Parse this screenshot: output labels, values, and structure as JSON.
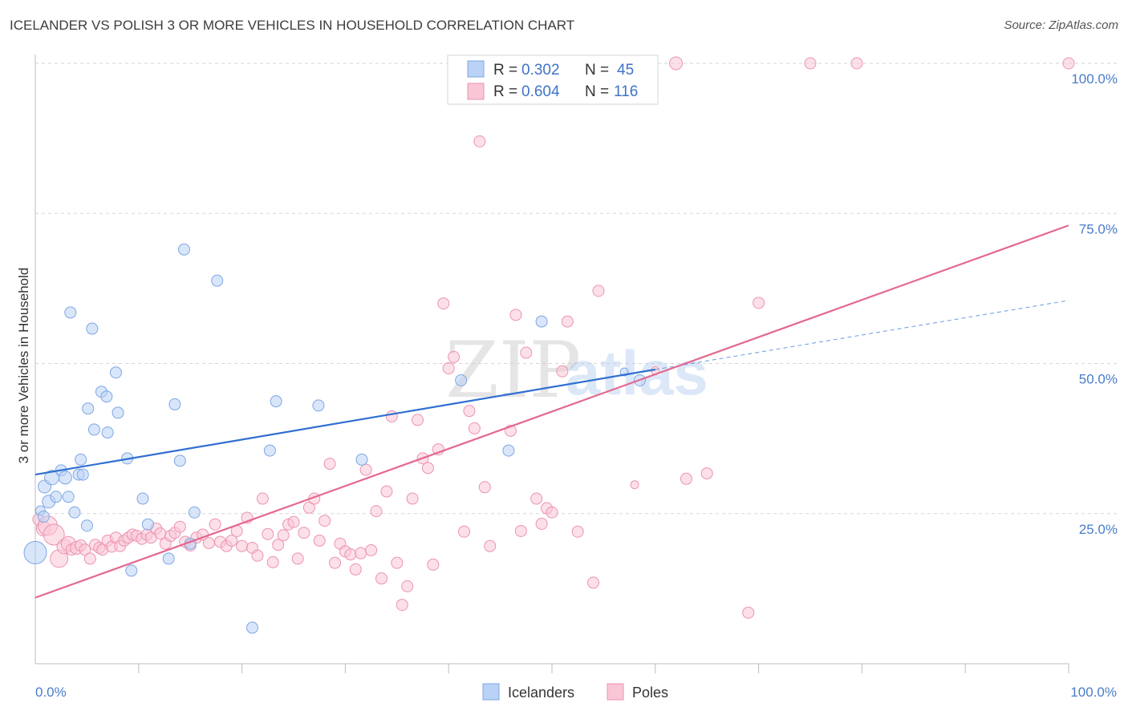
{
  "title": "ICELANDER VS POLISH 3 OR MORE VEHICLES IN HOUSEHOLD CORRELATION CHART",
  "source": "Source: ZipAtlas.com",
  "watermark": {
    "zip": "ZIP",
    "atlas": "atlas"
  },
  "colors": {
    "blue_fill": "#b9d2f5",
    "blue_stroke": "#7ea7e4",
    "blue_line": "#2f6fd1",
    "pink_fill": "#f9c6d6",
    "pink_stroke": "#ec93b1",
    "pink_line": "#e4688f",
    "grid": "#d5d5d5",
    "axis_text": "#4a7cc9"
  },
  "legend": {
    "rows": [
      {
        "r_label": "R =",
        "r_value": "0.302",
        "n_label": "N =",
        "n_value": "45"
      },
      {
        "r_label": "R =",
        "r_value": "0.604",
        "n_label": "N =",
        "n_value": "116"
      }
    ]
  },
  "bottom_legend": [
    "Icelanders",
    "Poles"
  ],
  "chart_data": {
    "type": "scatter",
    "title": "ICELANDER VS POLISH 3 OR MORE VEHICLES IN HOUSEHOLD CORRELATION CHART",
    "xlabel": "",
    "ylabel": "3 or more Vehicles in Household",
    "xlim": [
      0,
      100
    ],
    "ylim": [
      0,
      100
    ],
    "x_tick_labels": [
      "0.0%",
      "100.0%"
    ],
    "y_ticks": [
      25,
      50,
      75,
      100
    ],
    "y_tick_labels": [
      "25.0%",
      "50.0%",
      "75.0%",
      "100.0%"
    ],
    "grid": true,
    "legend_position": "top-center",
    "series": [
      {
        "name": "Icelanders",
        "R": 0.302,
        "N": 45,
        "trend": {
          "x0": 0,
          "y0": 31.5,
          "x1": 60,
          "y1": 49,
          "dash_to_x": 100,
          "dash_to_y": 60.5
        },
        "points": [
          [
            0,
            18.5,
            14
          ],
          [
            0.5,
            25.5,
            6
          ],
          [
            0.8,
            24.5,
            7
          ],
          [
            0.9,
            29.5,
            8
          ],
          [
            1.3,
            27,
            8
          ],
          [
            1.6,
            31,
            9
          ],
          [
            2.0,
            27.8,
            7
          ],
          [
            2.5,
            32.2,
            7
          ],
          [
            2.9,
            31,
            8
          ],
          [
            3.2,
            27.8,
            7
          ],
          [
            3.4,
            58.5,
            7
          ],
          [
            3.8,
            25.2,
            7
          ],
          [
            4.2,
            31.5,
            7
          ],
          [
            4.4,
            34,
            7
          ],
          [
            4.6,
            31.5,
            7
          ],
          [
            5.0,
            23,
            7
          ],
          [
            5.1,
            42.5,
            7
          ],
          [
            5.5,
            55.8,
            7
          ],
          [
            5.7,
            39,
            7
          ],
          [
            6.4,
            45.3,
            7
          ],
          [
            6.9,
            44.5,
            7
          ],
          [
            7.0,
            38.5,
            7
          ],
          [
            7.8,
            48.5,
            7
          ],
          [
            8.0,
            41.8,
            7
          ],
          [
            8.9,
            34.2,
            7
          ],
          [
            9.3,
            15.5,
            7
          ],
          [
            10.4,
            27.5,
            7
          ],
          [
            10.9,
            23.2,
            7
          ],
          [
            12.9,
            17.5,
            7
          ],
          [
            13.5,
            43.2,
            7
          ],
          [
            14.0,
            33.8,
            7
          ],
          [
            14.4,
            69,
            7
          ],
          [
            15.0,
            20,
            7
          ],
          [
            15.4,
            25.2,
            7
          ],
          [
            17.6,
            63.8,
            7
          ],
          [
            21.0,
            6,
            7
          ],
          [
            22.7,
            35.5,
            7
          ],
          [
            23.3,
            43.7,
            7
          ],
          [
            27.4,
            43,
            7
          ],
          [
            31.6,
            34,
            7
          ],
          [
            41.2,
            47.2,
            7
          ],
          [
            45.8,
            35.5,
            7
          ],
          [
            49.0,
            57,
            7
          ],
          [
            58.5,
            47.2,
            7
          ],
          [
            57.0,
            48.6,
            5
          ]
        ]
      },
      {
        "name": "Poles",
        "R": 0.604,
        "N": 116,
        "trend": {
          "x0": 0,
          "y0": 11,
          "x1": 100,
          "y1": 73
        },
        "points": [
          [
            0.3,
            24,
            7
          ],
          [
            0.8,
            22.5,
            9
          ],
          [
            1.2,
            23,
            12
          ],
          [
            1.8,
            21.5,
            13
          ],
          [
            2.3,
            17.5,
            11
          ],
          [
            2.8,
            19.5,
            9
          ],
          [
            3.2,
            20,
            9
          ],
          [
            3.5,
            19,
            7
          ],
          [
            4.0,
            19.3,
            8
          ],
          [
            4.4,
            19.7,
            7
          ],
          [
            4.8,
            19,
            7
          ],
          [
            5.3,
            17.5,
            7
          ],
          [
            5.8,
            19.8,
            7
          ],
          [
            6.2,
            19.3,
            7
          ],
          [
            6.5,
            19,
            7
          ],
          [
            7.0,
            20.5,
            7
          ],
          [
            7.4,
            19.5,
            7
          ],
          [
            7.8,
            21,
            7
          ],
          [
            8.2,
            19.6,
            7
          ],
          [
            8.6,
            20.5,
            7
          ],
          [
            9.0,
            21,
            7
          ],
          [
            9.4,
            21.5,
            7
          ],
          [
            9.8,
            21.3,
            7
          ],
          [
            10.3,
            20.8,
            7
          ],
          [
            10.8,
            21.5,
            7
          ],
          [
            11.2,
            21,
            7
          ],
          [
            11.7,
            22.5,
            7
          ],
          [
            12.1,
            21.7,
            7
          ],
          [
            12.6,
            20,
            7
          ],
          [
            13.1,
            21.3,
            7
          ],
          [
            13.5,
            21.8,
            7
          ],
          [
            14.0,
            22.8,
            7
          ],
          [
            14.5,
            20.3,
            7
          ],
          [
            15.0,
            19.7,
            7
          ],
          [
            15.6,
            21,
            7
          ],
          [
            16.2,
            21.5,
            7
          ],
          [
            16.8,
            20.1,
            7
          ],
          [
            17.4,
            23.2,
            7
          ],
          [
            17.9,
            20.3,
            7
          ],
          [
            18.5,
            19.6,
            7
          ],
          [
            19.0,
            20.5,
            7
          ],
          [
            19.5,
            22.1,
            7
          ],
          [
            20.0,
            19.6,
            7
          ],
          [
            20.5,
            24.3,
            7
          ],
          [
            21.0,
            19.3,
            7
          ],
          [
            21.5,
            18,
            7
          ],
          [
            22.0,
            27.5,
            7
          ],
          [
            22.5,
            21.6,
            7
          ],
          [
            23.0,
            16.9,
            7
          ],
          [
            23.5,
            19.8,
            7
          ],
          [
            24.0,
            21.4,
            7
          ],
          [
            24.5,
            23.2,
            7
          ],
          [
            25.0,
            23.6,
            7
          ],
          [
            25.4,
            17.5,
            7
          ],
          [
            26.0,
            21.8,
            7
          ],
          [
            26.5,
            26,
            7
          ],
          [
            27.0,
            27.5,
            7
          ],
          [
            27.5,
            20.5,
            7
          ],
          [
            28.0,
            23.8,
            7
          ],
          [
            28.5,
            33.3,
            7
          ],
          [
            29.0,
            16.8,
            7
          ],
          [
            29.5,
            20,
            7
          ],
          [
            30.0,
            18.7,
            7
          ],
          [
            30.5,
            18.2,
            7
          ],
          [
            31.0,
            15.7,
            7
          ],
          [
            31.5,
            18.4,
            7
          ],
          [
            32.0,
            32.3,
            7
          ],
          [
            32.5,
            18.9,
            7
          ],
          [
            33.0,
            25.4,
            7
          ],
          [
            33.5,
            14.2,
            7
          ],
          [
            34.0,
            28.7,
            7
          ],
          [
            34.5,
            41.2,
            7
          ],
          [
            35.0,
            16.8,
            7
          ],
          [
            35.5,
            9.8,
            7
          ],
          [
            36.0,
            12.9,
            7
          ],
          [
            36.5,
            27.5,
            7
          ],
          [
            37.0,
            40.6,
            7
          ],
          [
            37.5,
            34.2,
            7
          ],
          [
            38.0,
            32.6,
            7
          ],
          [
            38.5,
            16.5,
            7
          ],
          [
            39.0,
            35.7,
            7
          ],
          [
            39.5,
            60,
            7
          ],
          [
            40.0,
            49.2,
            7
          ],
          [
            40.5,
            51.1,
            7
          ],
          [
            41.5,
            22,
            7
          ],
          [
            42.0,
            42.1,
            7
          ],
          [
            42.5,
            39.2,
            7
          ],
          [
            43.0,
            87,
            7
          ],
          [
            43.5,
            29.4,
            7
          ],
          [
            44.0,
            19.6,
            7
          ],
          [
            45.0,
            100,
            9
          ],
          [
            45.5,
            100,
            7
          ],
          [
            46.0,
            38.8,
            7
          ],
          [
            46.5,
            58.1,
            7
          ],
          [
            47.0,
            22.1,
            7
          ],
          [
            47.5,
            51.8,
            7
          ],
          [
            48.5,
            27.5,
            7
          ],
          [
            49.0,
            23.3,
            7
          ],
          [
            49.5,
            25.9,
            7
          ],
          [
            50.0,
            25.2,
            7
          ],
          [
            51.0,
            48.7,
            7
          ],
          [
            51.5,
            57,
            7
          ],
          [
            52.5,
            22,
            7
          ],
          [
            54.0,
            13.5,
            7
          ],
          [
            54.5,
            62.1,
            7
          ],
          [
            63.0,
            30.8,
            7
          ],
          [
            65.0,
            31.7,
            7
          ],
          [
            69.0,
            8.5,
            7
          ],
          [
            70.0,
            60.1,
            7
          ],
          [
            75.0,
            100,
            7
          ],
          [
            79.5,
            100,
            7
          ],
          [
            100.0,
            100,
            7
          ],
          [
            62.0,
            100,
            8
          ],
          [
            44.3,
            100,
            7
          ],
          [
            58.0,
            29.8,
            5
          ],
          [
            60.0,
            48.8,
            5
          ]
        ]
      }
    ]
  }
}
